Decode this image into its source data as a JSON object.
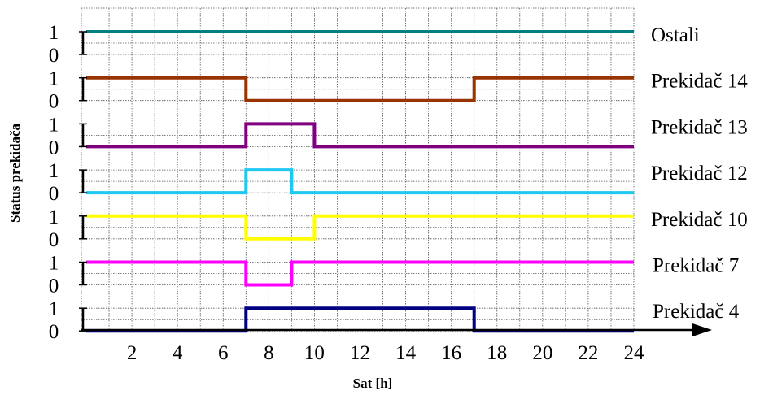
{
  "chart_data": {
    "type": "line",
    "xlabel": "Sat [h]",
    "ylabel": "Status prekidača",
    "xlim": [
      0,
      24
    ],
    "x_ticks": [
      "2",
      "4",
      "6",
      "8",
      "10",
      "12",
      "14",
      "16",
      "18",
      "20",
      "22",
      "24"
    ],
    "state_labels": [
      "1",
      "0"
    ],
    "grid": true,
    "series": [
      {
        "name": "Ostali",
        "color": "#008080",
        "x": [
          0,
          24
        ],
        "y": [
          1,
          1
        ]
      },
      {
        "name": "Prekidač 14",
        "color": "#993300",
        "x": [
          0,
          7,
          7,
          17,
          17,
          24
        ],
        "y": [
          1,
          1,
          0,
          0,
          1,
          1
        ]
      },
      {
        "name": "Prekidač 13",
        "color": "#800080",
        "x": [
          0,
          7,
          7,
          10,
          10,
          24
        ],
        "y": [
          0,
          0,
          1,
          1,
          0,
          0
        ]
      },
      {
        "name": "Prekidač 12",
        "color": "#1ec8f0",
        "x": [
          0,
          7,
          7,
          9,
          9,
          24
        ],
        "y": [
          0,
          0,
          1,
          1,
          0,
          0
        ]
      },
      {
        "name": "Prekidač 10",
        "color": "#ffff00",
        "x": [
          0,
          7,
          7,
          10,
          10,
          24
        ],
        "y": [
          1,
          1,
          0,
          0,
          1,
          1
        ]
      },
      {
        "name": "Prekidač 7",
        "color": "#ff00ff",
        "x": [
          0,
          7,
          7,
          9,
          9,
          24
        ],
        "y": [
          1,
          1,
          0,
          0,
          1,
          1
        ]
      },
      {
        "name": "Prekidač 4",
        "color": "#000080",
        "x": [
          0,
          7,
          7,
          17,
          17,
          24
        ],
        "y": [
          0,
          0,
          1,
          1,
          0,
          0
        ]
      }
    ]
  }
}
